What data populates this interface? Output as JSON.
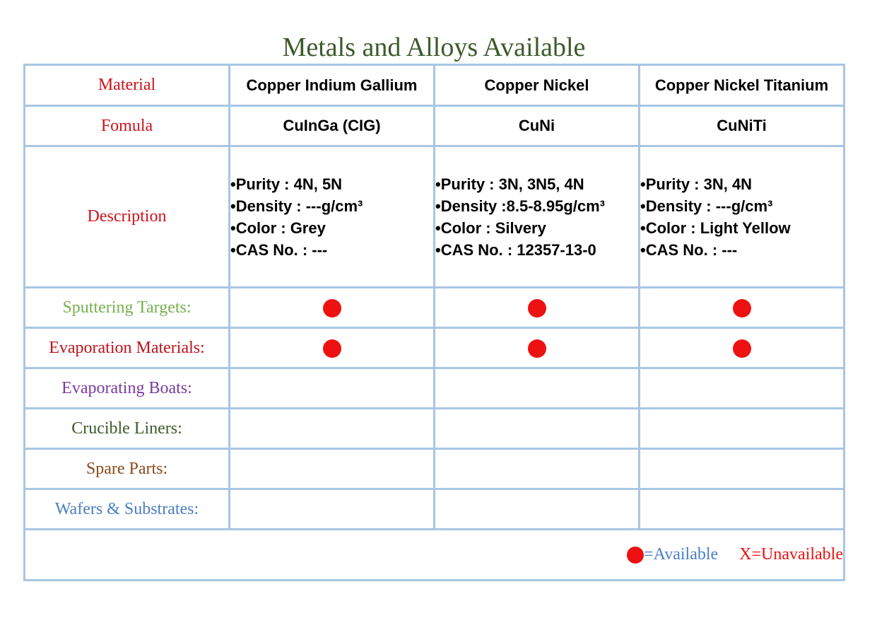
{
  "title": "Metals and Alloys Available",
  "labels": {
    "material": {
      "text": "Material",
      "color": "#d0121b"
    },
    "formula": {
      "text": "Fomula",
      "color": "#d0121b"
    },
    "description": {
      "text": "Description",
      "color": "#d0121b"
    },
    "sputtering": {
      "text": "Sputtering Targets:",
      "color": "#78b050"
    },
    "evaporation": {
      "text": "Evaporation Materials:",
      "color": "#c0121b"
    },
    "boats": {
      "text": "Evaporating Boats:",
      "color": "#7a3aa0"
    },
    "crucible": {
      "text": "Crucible Liners:",
      "color": "#3d5a2a"
    },
    "spare": {
      "text": "Spare Parts:",
      "color": "#8a4a1a"
    },
    "wafers": {
      "text": "Wafers & Substrates:",
      "color": "#4a7ec4"
    }
  },
  "materials": [
    {
      "name": "Copper Indium Gallium",
      "formula": "CuInGa (CIG)",
      "purity": "•Purity : 4N, 5N",
      "density": "•Density : ---g/cm³",
      "color": "•Color : Grey",
      "cas": "•CAS No. : ---",
      "sputtering": true,
      "evaporation": true,
      "boats": false,
      "crucible": false,
      "spare": false,
      "wafers": false
    },
    {
      "name": "Copper Nickel",
      "formula": "CuNi",
      "purity": "•Purity : 3N, 3N5, 4N",
      "density": "•Density :8.5-8.95g/cm³",
      "color": "•Color : Silvery",
      "cas": "•CAS No. : 12357-13-0",
      "sputtering": true,
      "evaporation": true,
      "boats": false,
      "crucible": false,
      "spare": false,
      "wafers": false
    },
    {
      "name": "Copper Nickel Titanium",
      "formula": "CuNiTi",
      "purity": "•Purity : 3N, 4N",
      "density": "•Density : ---g/cm³",
      "color": "•Color : Light Yellow",
      "cas": "•CAS No. : ---",
      "sputtering": true,
      "evaporation": true,
      "boats": false,
      "crucible": false,
      "spare": false,
      "wafers": false
    }
  ],
  "legend": {
    "available": "=Available",
    "unavailable_mark": "X",
    "unavailable": "=Unavailable"
  },
  "colors": {
    "dot": "#ee1111",
    "border": "#a8c6e4",
    "title": "#3d5a2a"
  }
}
